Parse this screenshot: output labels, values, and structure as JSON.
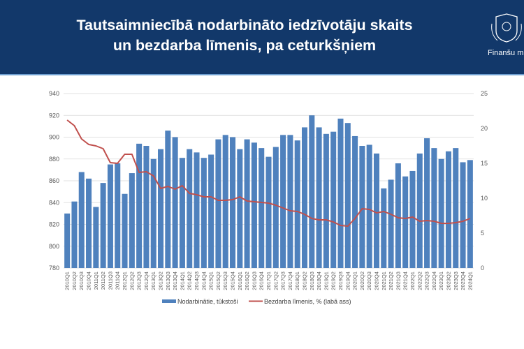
{
  "header": {
    "title_line1": "Tautsaimniecībā nodarbināto iedzīvotāju skaits",
    "title_line2": "un bezdarba līmenis, pa ceturkšņiem",
    "logo_text": "Finanšu m",
    "logo_icon": "coat-of-arms"
  },
  "colors": {
    "header_bg": "#12386a",
    "bar": "#4f81bd",
    "line": "#c0504d"
  },
  "chart_data": {
    "type": "bar+line",
    "title": "Tautsaimniecībā nodarbināto iedzīvotāju skaits un bezdarba līmenis, pa ceturkšņiem",
    "categories": [
      "2010Q1",
      "2010Q2",
      "2010Q3",
      "2010Q4",
      "2011Q1",
      "2011Q2",
      "2011Q3",
      "2011Q4",
      "2012Q1",
      "2012Q2",
      "2012Q3",
      "2012Q4",
      "2013Q1",
      "2013Q2",
      "2013Q3",
      "2013Q4",
      "2014Q1",
      "2014Q2",
      "2014Q3",
      "2014Q4",
      "2015Q1",
      "2015Q2",
      "2015Q3",
      "2015Q4",
      "2016Q1",
      "2016Q2",
      "2016Q3",
      "2016Q4",
      "2017Q1",
      "2017Q2",
      "2017Q3",
      "2017Q4",
      "2018Q1",
      "2018Q2",
      "2018Q3",
      "2018Q4",
      "2019Q1",
      "2019Q2",
      "2019Q3",
      "2019Q4",
      "2020Q1",
      "2020Q2",
      "2020Q3",
      "2020Q4",
      "2021Q1",
      "2021Q2",
      "2021Q3",
      "2021Q4",
      "2022Q1",
      "2022Q2",
      "2022Q3",
      "2022Q4",
      "2023Q1",
      "2023Q2",
      "2023Q3",
      "2023Q4",
      "2024Q1"
    ],
    "series": [
      {
        "name": "Nodarbinātie, tūkstoši",
        "type": "bar",
        "axis": "left",
        "values": [
          830,
          841,
          868,
          862,
          836,
          858,
          875,
          876,
          848,
          867,
          894,
          892,
          880,
          889,
          906,
          900,
          881,
          889,
          886,
          881,
          884,
          898,
          902,
          900,
          889,
          898,
          895,
          890,
          882,
          891,
          902,
          902,
          897,
          909,
          920,
          909,
          903,
          905,
          917,
          913,
          901,
          892,
          893,
          885,
          853,
          861,
          876,
          864,
          869,
          885,
          899,
          890,
          880,
          887,
          890,
          877,
          879
        ]
      },
      {
        "name": "Bezdarba līmenis, % (labā ass)",
        "type": "line",
        "axis": "right",
        "values": [
          21.2,
          20.4,
          18.5,
          17.7,
          17.5,
          17.1,
          15.1,
          15.0,
          16.3,
          16.3,
          13.7,
          13.8,
          13.2,
          11.4,
          11.7,
          11.3,
          11.8,
          10.7,
          10.5,
          10.2,
          10.2,
          9.7,
          9.7,
          9.8,
          10.2,
          9.6,
          9.5,
          9.4,
          9.3,
          9.0,
          8.6,
          8.2,
          8.1,
          7.7,
          7.1,
          6.9,
          6.9,
          6.6,
          6.1,
          6.0,
          7.1,
          8.5,
          8.4,
          7.9,
          8.1,
          7.7,
          7.2,
          7.1,
          7.3,
          6.7,
          6.8,
          6.7,
          6.4,
          6.4,
          6.5,
          6.7,
          7.1
        ]
      }
    ],
    "left_axis": {
      "range": [
        780,
        940
      ],
      "ticks": [
        "780",
        "800",
        "820",
        "840",
        "860",
        "880",
        "900",
        "920",
        "940"
      ]
    },
    "right_axis": {
      "range": [
        0,
        25
      ],
      "ticks": [
        "0",
        "5",
        "10",
        "15",
        "20",
        "25"
      ]
    },
    "grid": true,
    "legend_position": "bottom"
  }
}
